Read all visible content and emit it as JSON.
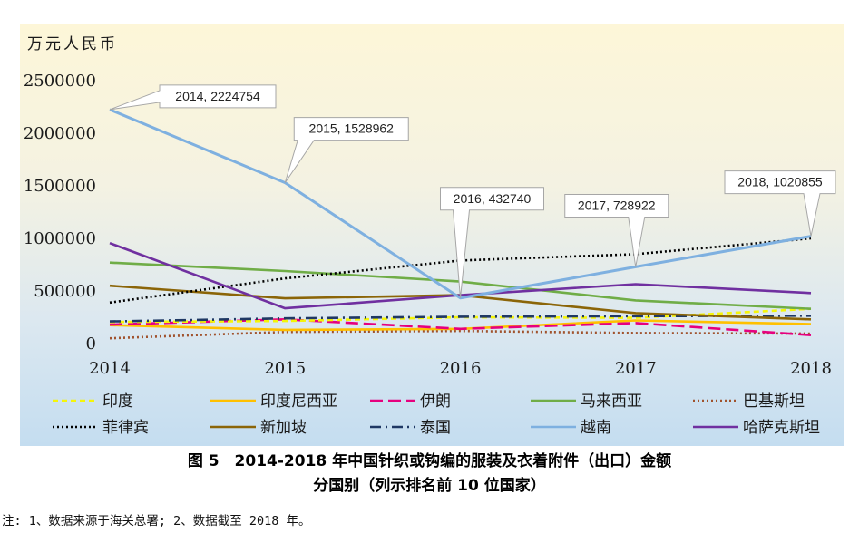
{
  "caption": {
    "line1": "图 5　2014-2018 年中国针织或钩编的服装及衣着附件（出口）金额",
    "line2": "分国别（列示排名前 10 位国家）"
  },
  "note": "注: 1、数据来源于海关总署; 2、数据截至 2018 年。",
  "chart_data": {
    "type": "line",
    "title": "",
    "xlabel": "",
    "ylabel": "万元人民币",
    "x": [
      "2014",
      "2015",
      "2016",
      "2017",
      "2018"
    ],
    "ylim": [
      0,
      2500000
    ],
    "yticks": [
      "0",
      "500000",
      "1000000",
      "1500000",
      "2000000",
      "2500000"
    ],
    "grid": false,
    "legend_position": "bottom",
    "series": [
      {
        "name": "印度",
        "color": "#f5f50a",
        "dash": "6,4",
        "values": [
          205000,
          215000,
          250000,
          245000,
          330000
        ]
      },
      {
        "name": "印度尼西亚",
        "color": "#ffc000",
        "dash": "",
        "values": [
          175000,
          130000,
          140000,
          220000,
          185000
        ]
      },
      {
        "name": "伊朗",
        "color": "#e6007e",
        "dash": "14,6",
        "values": [
          180000,
          230000,
          140000,
          195000,
          80000
        ]
      },
      {
        "name": "马来西亚",
        "color": "#70ad47",
        "dash": "",
        "values": [
          770000,
          690000,
          590000,
          410000,
          330000
        ]
      },
      {
        "name": "巴基斯坦",
        "color": "#a0522d",
        "dash": "2,3",
        "values": [
          50000,
          110000,
          120000,
          100000,
          95000
        ]
      },
      {
        "name": "菲律宾",
        "color": "#000000",
        "dash": "2,3",
        "values": [
          390000,
          620000,
          790000,
          850000,
          1000000
        ]
      },
      {
        "name": "新加坡",
        "color": "#8b6508",
        "dash": "",
        "values": [
          550000,
          430000,
          460000,
          290000,
          230000
        ]
      },
      {
        "name": "泰国",
        "color": "#1f3864",
        "dash": "12,5,2,5",
        "values": [
          210000,
          240000,
          255000,
          260000,
          265000
        ]
      },
      {
        "name": "越南",
        "color": "#7eb0e0",
        "dash": "",
        "values": [
          2224754,
          1528962,
          432740,
          728922,
          1020855
        ]
      },
      {
        "name": "哈萨克斯坦",
        "color": "#7030a0",
        "dash": "",
        "values": [
          955000,
          335000,
          460000,
          565000,
          480000
        ]
      }
    ],
    "annotations": [
      {
        "series": "越南",
        "x": "2014",
        "text": "2014, 2224754"
      },
      {
        "series": "越南",
        "x": "2015",
        "text": "2015, 1528962"
      },
      {
        "series": "越南",
        "x": "2016",
        "text": "2016, 432740"
      },
      {
        "series": "越南",
        "x": "2017",
        "text": "2017, 728922"
      },
      {
        "series": "越南",
        "x": "2018",
        "text": "2018, 1020855"
      }
    ]
  }
}
